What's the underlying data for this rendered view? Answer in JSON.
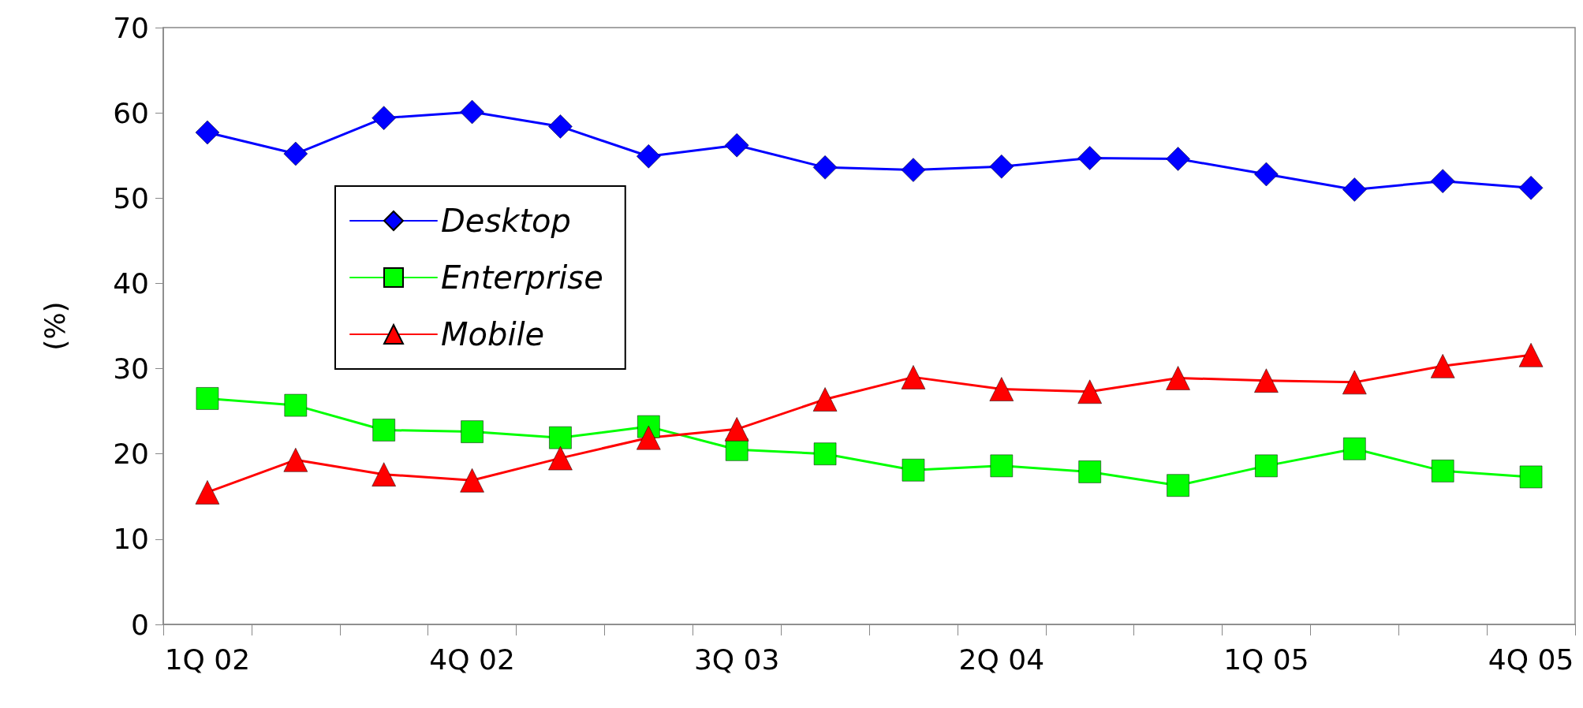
{
  "chart_data": {
    "type": "line",
    "ylabel": "(%)",
    "categories": [
      "1Q 02",
      null,
      null,
      "4Q 02",
      null,
      null,
      "3Q 03",
      null,
      null,
      "2Q 04",
      null,
      null,
      "1Q 05",
      null,
      null,
      "4Q 05"
    ],
    "series": [
      {
        "name": "Desktop",
        "color": "#0000ff",
        "marker": "diamond",
        "values": [
          57.7,
          55.2,
          59.4,
          60.1,
          58.4,
          54.9,
          56.2,
          53.6,
          53.3,
          53.7,
          54.7,
          54.6,
          52.8,
          51.0,
          52.0,
          51.2
        ]
      },
      {
        "name": "Enterprise",
        "color": "#00ff00",
        "marker": "square",
        "values": [
          26.5,
          25.7,
          22.8,
          22.6,
          21.9,
          23.2,
          20.5,
          20.0,
          18.1,
          18.6,
          17.9,
          16.3,
          18.6,
          20.6,
          18.0,
          17.3
        ]
      },
      {
        "name": "Mobile",
        "color": "#ff0000",
        "marker": "triangle",
        "values": [
          15.5,
          19.3,
          17.6,
          16.9,
          19.5,
          21.9,
          22.9,
          26.4,
          29.0,
          27.6,
          27.3,
          28.9,
          28.6,
          28.4,
          30.3,
          31.6
        ]
      }
    ],
    "ylim": [
      0,
      70
    ],
    "yticks": [
      0,
      10,
      20,
      30,
      40,
      50,
      60,
      70
    ],
    "grid": false,
    "legend": "left",
    "line_style": "solid"
  }
}
